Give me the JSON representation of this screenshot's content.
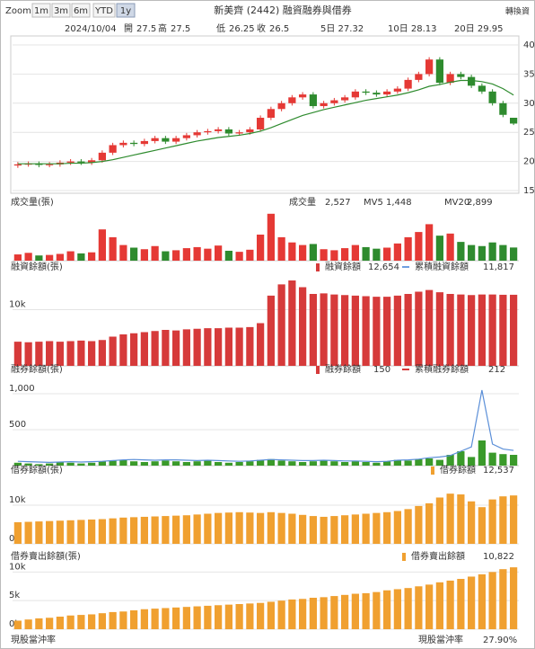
{
  "toolbar": {
    "zoom_label": "Zoom",
    "buttons": [
      "1m",
      "3m",
      "6m",
      "YTD",
      "1y"
    ],
    "active": 4,
    "title": "新美齊 (2442) 融資融券與借券",
    "link": "轉換資"
  },
  "info": {
    "date": "2024/10/04",
    "quotes": [
      {
        "label": "開",
        "value": 27.5
      },
      {
        "label": "高",
        "value": 27.5
      },
      {
        "label": "低",
        "value": 26.25
      },
      {
        "label": "收",
        "value": 26.5
      }
    ],
    "ma": [
      {
        "text": "5日 27.32",
        "color": "#e53935"
      },
      {
        "text": "10日 28.13",
        "color": "#1e5bd8"
      },
      {
        "text": "20日 29.95",
        "color": "#2e8b2e"
      }
    ]
  },
  "chart_data": [
    {
      "type": "candlestick",
      "ylim": [
        15,
        40
      ],
      "yticks": [
        15,
        20,
        25,
        30,
        35,
        40
      ],
      "up_color": "#e53935",
      "down_color": "#2e8b2e",
      "open": [
        19.3,
        19.5,
        19.6,
        19.4,
        19.5,
        19.8,
        20.0,
        19.8,
        20.2,
        21.5,
        22.8,
        23.2,
        23.0,
        23.5,
        24.0,
        23.4,
        24.0,
        24.5,
        25.0,
        25.2,
        25.5,
        24.8,
        25.0,
        25.5,
        27.5,
        29.0,
        30.0,
        31.0,
        31.5,
        29.5,
        30.0,
        30.5,
        31.0,
        32.0,
        31.8,
        31.5,
        32.0,
        32.5,
        34.0,
        35.0,
        37.5,
        33.5,
        35.0,
        34.5,
        33.0,
        32.0,
        30.0,
        27.5
      ],
      "high": [
        19.9,
        20.0,
        20.0,
        19.9,
        20.2,
        20.4,
        20.4,
        20.6,
        21.9,
        23.2,
        23.6,
        23.6,
        23.9,
        24.4,
        24.4,
        24.4,
        24.9,
        25.4,
        25.6,
        25.9,
        25.9,
        25.4,
        25.9,
        27.9,
        29.4,
        30.4,
        31.4,
        31.9,
        31.9,
        30.4,
        30.9,
        31.4,
        32.4,
        32.4,
        32.2,
        32.4,
        32.9,
        34.4,
        35.4,
        37.9,
        37.9,
        35.4,
        35.4,
        34.9,
        33.4,
        32.4,
        30.4,
        27.5
      ],
      "low": [
        18.9,
        19.1,
        19.0,
        19.0,
        19.1,
        19.4,
        19.4,
        19.4,
        19.8,
        21.1,
        22.4,
        22.6,
        22.6,
        23.1,
        23.0,
        23.0,
        23.6,
        24.1,
        24.6,
        24.8,
        24.4,
        24.4,
        24.6,
        25.1,
        27.1,
        28.6,
        29.6,
        30.6,
        29.1,
        29.1,
        29.6,
        30.1,
        30.6,
        31.4,
        31.1,
        31.1,
        31.6,
        32.1,
        33.6,
        34.6,
        33.1,
        33.1,
        34.1,
        32.6,
        31.6,
        29.6,
        27.6,
        26.25
      ],
      "close": [
        19.5,
        19.6,
        19.4,
        19.5,
        19.8,
        20.0,
        19.8,
        20.2,
        21.5,
        22.8,
        23.2,
        23.0,
        23.5,
        24.0,
        23.4,
        24.0,
        24.5,
        25.0,
        25.2,
        25.5,
        24.8,
        25.0,
        25.5,
        27.5,
        29.0,
        30.0,
        31.0,
        31.5,
        29.5,
        30.0,
        30.5,
        31.0,
        32.0,
        31.8,
        31.5,
        32.0,
        32.5,
        34.0,
        35.0,
        37.5,
        33.5,
        35.0,
        34.5,
        33.0,
        32.0,
        30.0,
        28.0,
        26.5
      ],
      "line": {
        "color": "#2e8b2e",
        "values": [
          19.6,
          19.6,
          19.6,
          19.6,
          19.6,
          19.7,
          19.7,
          19.8,
          20.0,
          20.3,
          20.7,
          21.1,
          21.5,
          21.9,
          22.3,
          22.7,
          23.1,
          23.5,
          23.8,
          24.1,
          24.3,
          24.5,
          24.8,
          25.2,
          25.8,
          26.5,
          27.2,
          27.9,
          28.4,
          28.9,
          29.3,
          29.7,
          30.1,
          30.5,
          30.8,
          31.1,
          31.4,
          31.8,
          32.3,
          32.9,
          33.2,
          33.6,
          33.9,
          33.9,
          33.7,
          33.3,
          32.5,
          31.4
        ]
      }
    },
    {
      "type": "bar",
      "title": "成交量(張)",
      "ylim": [
        0,
        10000
      ],
      "yticks": [],
      "up_color": "#e53935",
      "down_color": "#2e8b2e",
      "legend": [
        {
          "name": "成交量",
          "value": "2,527",
          "color": "#e53935"
        },
        {
          "name": "MV5",
          "value": "1,448",
          "color": "#e53935"
        },
        {
          "name": "MV20",
          "value": "2,899",
          "color": "#1e5bd8"
        }
      ],
      "values": [
        1200,
        1500,
        1000,
        1100,
        1300,
        1800,
        1400,
        1600,
        6000,
        4500,
        3000,
        2500,
        2200,
        2800,
        1800,
        2000,
        2400,
        2600,
        2300,
        2900,
        1900,
        1700,
        2100,
        5000,
        9000,
        4500,
        3500,
        3000,
        3200,
        2200,
        2000,
        2400,
        3000,
        2600,
        2300,
        2500,
        3300,
        4500,
        5500,
        7000,
        4800,
        5200,
        3600,
        3000,
        2800,
        3500,
        3000,
        2527
      ]
    },
    {
      "type": "bar",
      "title": "融資餘額(張)",
      "ylim": [
        0,
        16000
      ],
      "yticks": [
        {
          "value": 10000,
          "label": "10k"
        }
      ],
      "color": "#d63a3a",
      "legend": [
        {
          "name": "融資餘額",
          "value": "12,654",
          "color": "#d63a3a"
        },
        {
          "name": "累積融資餘額",
          "value": "11,817",
          "color": "#6f9fe0"
        }
      ],
      "values": [
        4300,
        4200,
        4300,
        4400,
        4300,
        4400,
        4500,
        4400,
        4600,
        5200,
        5600,
        5800,
        6000,
        6200,
        6400,
        6300,
        6500,
        6600,
        6700,
        6700,
        6800,
        6800,
        6900,
        7600,
        12500,
        14500,
        15200,
        14000,
        12800,
        12900,
        12700,
        12600,
        12500,
        12400,
        12300,
        12300,
        12500,
        12800,
        13200,
        13500,
        13100,
        12800,
        12700,
        12600,
        12700,
        12700,
        12650,
        12654
      ]
    },
    {
      "type": "bar",
      "title": "融券餘額(張)",
      "ylim": [
        0,
        1200
      ],
      "yticks": [
        500,
        {
          "value": 1000,
          "label": "1,000"
        }
      ],
      "color": "#3a9a2a",
      "legend": [
        {
          "name": "融券餘額",
          "value": "150",
          "color": "#d63a3a"
        },
        {
          "name": "累積融券餘額",
          "value": "212",
          "color": "#d63a3a"
        }
      ],
      "values": [
        40,
        30,
        20,
        30,
        50,
        40,
        30,
        40,
        60,
        70,
        80,
        60,
        50,
        60,
        70,
        60,
        50,
        60,
        70,
        50,
        40,
        50,
        60,
        80,
        90,
        70,
        60,
        50,
        60,
        70,
        60,
        50,
        60,
        50,
        40,
        60,
        80,
        70,
        90,
        100,
        80,
        150,
        200,
        120,
        350,
        180,
        160,
        150
      ],
      "line": {
        "color": "#5b8fd8",
        "values": [
          60,
          55,
          50,
          45,
          50,
          55,
          50,
          55,
          60,
          70,
          80,
          85,
          80,
          75,
          80,
          80,
          75,
          70,
          75,
          70,
          65,
          60,
          65,
          75,
          85,
          80,
          75,
          70,
          70,
          75,
          70,
          65,
          65,
          60,
          55,
          60,
          75,
          80,
          90,
          110,
          120,
          140,
          200,
          260,
          1050,
          300,
          230,
          212
        ]
      }
    },
    {
      "type": "bar",
      "title": "借券餘額(張)",
      "ylim": [
        0,
        17000
      ],
      "yticks": [
        {
          "value": 0,
          "label": "0k"
        },
        {
          "value": 10000,
          "label": "10k"
        }
      ],
      "color": "#f0a030",
      "legend": [
        {
          "name": "借券餘額",
          "value": "12,537",
          "color": "#f0a030"
        }
      ],
      "values": [
        5600,
        5700,
        5800,
        5900,
        6000,
        6100,
        6200,
        6300,
        6400,
        6600,
        6800,
        6900,
        7000,
        7100,
        7200,
        7300,
        7400,
        7600,
        7800,
        8000,
        8100,
        8200,
        8100,
        8000,
        8200,
        8000,
        7800,
        7500,
        7200,
        7000,
        7200,
        7400,
        7600,
        7800,
        8000,
        8200,
        8500,
        9000,
        9800,
        10500,
        12000,
        13000,
        12800,
        11000,
        9500,
        11500,
        12300,
        12537
      ]
    },
    {
      "type": "bar",
      "title": "借券賣出餘額(張)",
      "ylim": [
        0,
        11000
      ],
      "yticks": [
        {
          "value": 0,
          "label": "0k"
        },
        {
          "value": 5000,
          "label": "5k"
        },
        {
          "value": 10000,
          "label": "10k"
        }
      ],
      "color": "#f0a030",
      "legend": [
        {
          "name": "借券賣出餘額",
          "value": "10,822",
          "color": "#f0a030"
        }
      ],
      "values": [
        1500,
        1700,
        1900,
        2000,
        2200,
        2400,
        2500,
        2600,
        2800,
        3000,
        3100,
        3300,
        3500,
        3600,
        3700,
        3800,
        3900,
        4000,
        4100,
        4200,
        4300,
        4400,
        4500,
        4600,
        4800,
        5000,
        5200,
        5300,
        5500,
        5600,
        5800,
        6000,
        6200,
        6300,
        6500,
        6800,
        7000,
        7200,
        7500,
        7800,
        8200,
        8500,
        8800,
        9200,
        9600,
        10000,
        10500,
        10822
      ]
    }
  ],
  "footer": {
    "title": "現股當沖率",
    "legend_name": "現股當沖率",
    "legend_value": "27.90%",
    "color": "#f0a030"
  }
}
